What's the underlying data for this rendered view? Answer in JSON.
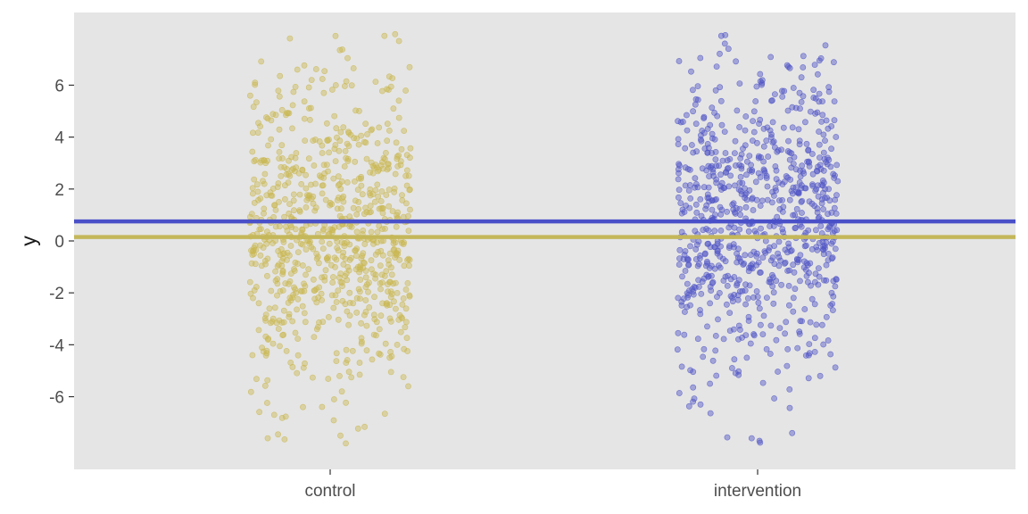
{
  "chart_data": {
    "type": "scatter",
    "subtype": "jitter-strip",
    "title": "",
    "xlabel": "",
    "ylabel": "y",
    "categories": [
      "control",
      "intervention"
    ],
    "ylim": [
      -8.8,
      8.8
    ],
    "yticks": [
      -6,
      -4,
      -2,
      0,
      2,
      4,
      6
    ],
    "grid": false,
    "legend": "none",
    "panel_background": "#e5e5e5",
    "series": [
      {
        "category": "control",
        "color": "#c9b751",
        "n_points": 800,
        "mean": 0.15,
        "sd": 3.0,
        "range": [
          -8,
          8
        ],
        "example_points": [
          7.8,
          7.9,
          7.7,
          6.6,
          6.0,
          -7.6,
          -7.8,
          -7.5,
          -6.4,
          -5.6
        ]
      },
      {
        "category": "intervention",
        "color": "#5055c6",
        "n_points": 800,
        "mean": 0.75,
        "sd": 3.0,
        "range": [
          -8,
          8
        ],
        "example_points": [
          7.9,
          7.6,
          7.4,
          6.3,
          5.8,
          -7.6,
          -7.7,
          -7.4,
          -6.3,
          -5.5
        ]
      }
    ],
    "hlines": [
      {
        "series": "intervention",
        "y": 0.75,
        "color": "#4a50c8"
      },
      {
        "series": "control",
        "y": 0.15,
        "color": "#c4b75a"
      }
    ]
  }
}
